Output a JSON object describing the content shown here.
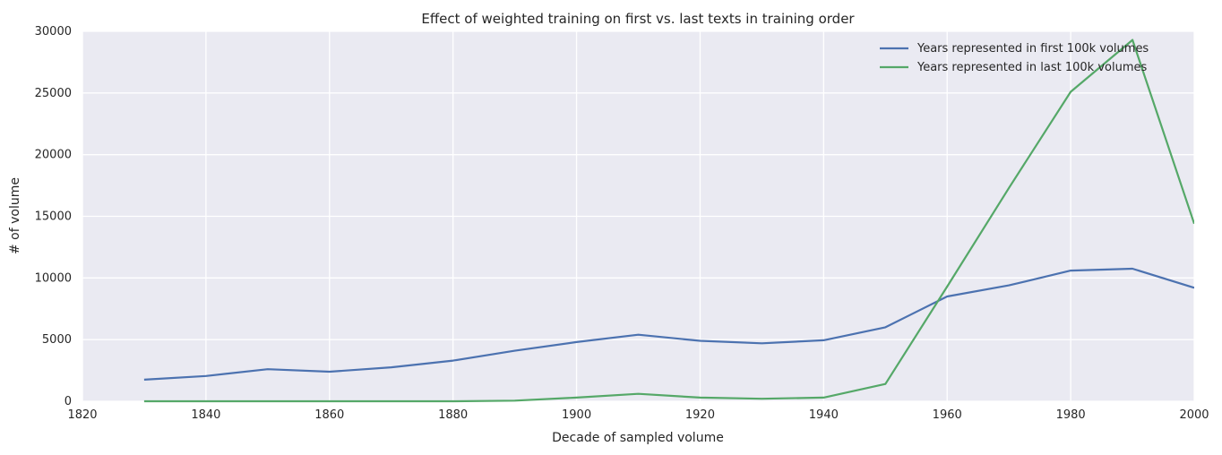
{
  "chart_data": {
    "type": "line",
    "title": "Effect of weighted training on first vs. last texts in training order",
    "xlabel": "Decade of sampled volume",
    "ylabel": "# of volume",
    "xlim": [
      1820,
      2000
    ],
    "ylim": [
      0,
      30000
    ],
    "xticks": [
      1820,
      1840,
      1860,
      1880,
      1900,
      1920,
      1940,
      1960,
      1980,
      2000
    ],
    "yticks": [
      0,
      5000,
      10000,
      15000,
      20000,
      25000,
      30000
    ],
    "grid": true,
    "legend_position": "top-right",
    "x": [
      1830,
      1840,
      1850,
      1860,
      1870,
      1880,
      1890,
      1900,
      1910,
      1920,
      1930,
      1940,
      1950,
      1960,
      1970,
      1980,
      1990,
      2000
    ],
    "series": [
      {
        "name": "Years represented in first 100k volumes",
        "color": "#4c72b0",
        "values": [
          1750,
          2050,
          2600,
          2400,
          2750,
          3300,
          4100,
          4800,
          5400,
          4900,
          4700,
          4950,
          6000,
          8500,
          9400,
          10600,
          10750,
          9200
        ]
      },
      {
        "name": "Years represented in last 100k volumes",
        "color": "#55a868",
        "values": [
          0,
          0,
          0,
          0,
          0,
          0,
          50,
          300,
          600,
          300,
          200,
          300,
          1400,
          9300,
          17300,
          25100,
          29300,
          14400
        ]
      }
    ]
  },
  "style": {
    "plot_background": "#eaeaf2",
    "grid_color": "#ffffff"
  }
}
